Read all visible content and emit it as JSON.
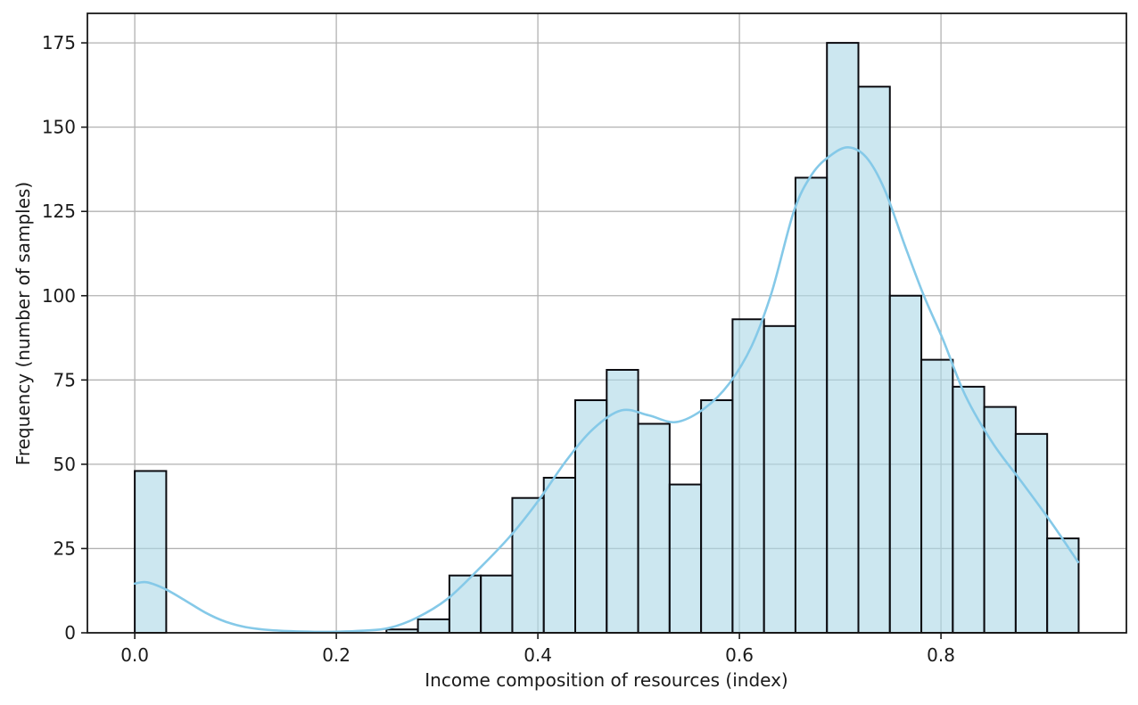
{
  "chart_data": {
    "type": "bar",
    "subtype": "histogram_with_kde",
    "title": "",
    "xlabel": "Income composition of resources (index)",
    "ylabel": "Frequency (number of samples)",
    "xlim": [
      -0.047,
      0.984
    ],
    "ylim": [
      0,
      183.75
    ],
    "xticks": [
      0.0,
      0.2,
      0.4,
      0.6,
      0.8
    ],
    "xtick_labels": [
      "0.0",
      "0.2",
      "0.4",
      "0.6",
      "0.8"
    ],
    "yticks": [
      0,
      25,
      50,
      75,
      100,
      125,
      150,
      175
    ],
    "ytick_labels": [
      "0",
      "25",
      "50",
      "75",
      "100",
      "125",
      "150",
      "175"
    ],
    "grid": true,
    "legend": "none",
    "bin_start": 0.0,
    "bin_width": 0.03122,
    "bin_counts": [
      48,
      0,
      0,
      0,
      0,
      0,
      0,
      0,
      1,
      4,
      17,
      17,
      40,
      46,
      69,
      78,
      62,
      44,
      69,
      93,
      91,
      135,
      175,
      162,
      100,
      81,
      73,
      67,
      59,
      28
    ],
    "series": [
      {
        "name": "kde",
        "type": "line",
        "points": [
          [
            0.0,
            14.6
          ],
          [
            0.012,
            15.0
          ],
          [
            0.03,
            13.0
          ],
          [
            0.05,
            9.6
          ],
          [
            0.07,
            6.0
          ],
          [
            0.09,
            3.3
          ],
          [
            0.11,
            1.7
          ],
          [
            0.135,
            0.8
          ],
          [
            0.165,
            0.4
          ],
          [
            0.195,
            0.3
          ],
          [
            0.225,
            0.6
          ],
          [
            0.252,
            1.4
          ],
          [
            0.28,
            4.5
          ],
          [
            0.31,
            10.0
          ],
          [
            0.34,
            18.5
          ],
          [
            0.372,
            28.5
          ],
          [
            0.4,
            39.0
          ],
          [
            0.428,
            51.0
          ],
          [
            0.455,
            60.5
          ],
          [
            0.483,
            66.0
          ],
          [
            0.51,
            64.5
          ],
          [
            0.537,
            62.5
          ],
          [
            0.565,
            66.5
          ],
          [
            0.59,
            74.0
          ],
          [
            0.612,
            85.0
          ],
          [
            0.632,
            101.0
          ],
          [
            0.654,
            125.0
          ],
          [
            0.672,
            136.0
          ],
          [
            0.69,
            141.5
          ],
          [
            0.708,
            144.0
          ],
          [
            0.726,
            141.0
          ],
          [
            0.744,
            131.5
          ],
          [
            0.764,
            115.0
          ],
          [
            0.783,
            100.0
          ],
          [
            0.802,
            87.0
          ],
          [
            0.824,
            70.5
          ],
          [
            0.852,
            56.0
          ],
          [
            0.882,
            44.0
          ],
          [
            0.91,
            32.5
          ],
          [
            0.936,
            21.0
          ]
        ]
      }
    ],
    "colors": {
      "bar_fill": "#ADD8E6",
      "bar_fill_opacity": 0.62,
      "bar_edge": "#0b0b10",
      "kde_line": "#85c9e8",
      "grid": "#b2b2b2",
      "spine": "#1a1a1a",
      "text": "#1a1a1a",
      "background": "#ffffff"
    }
  }
}
